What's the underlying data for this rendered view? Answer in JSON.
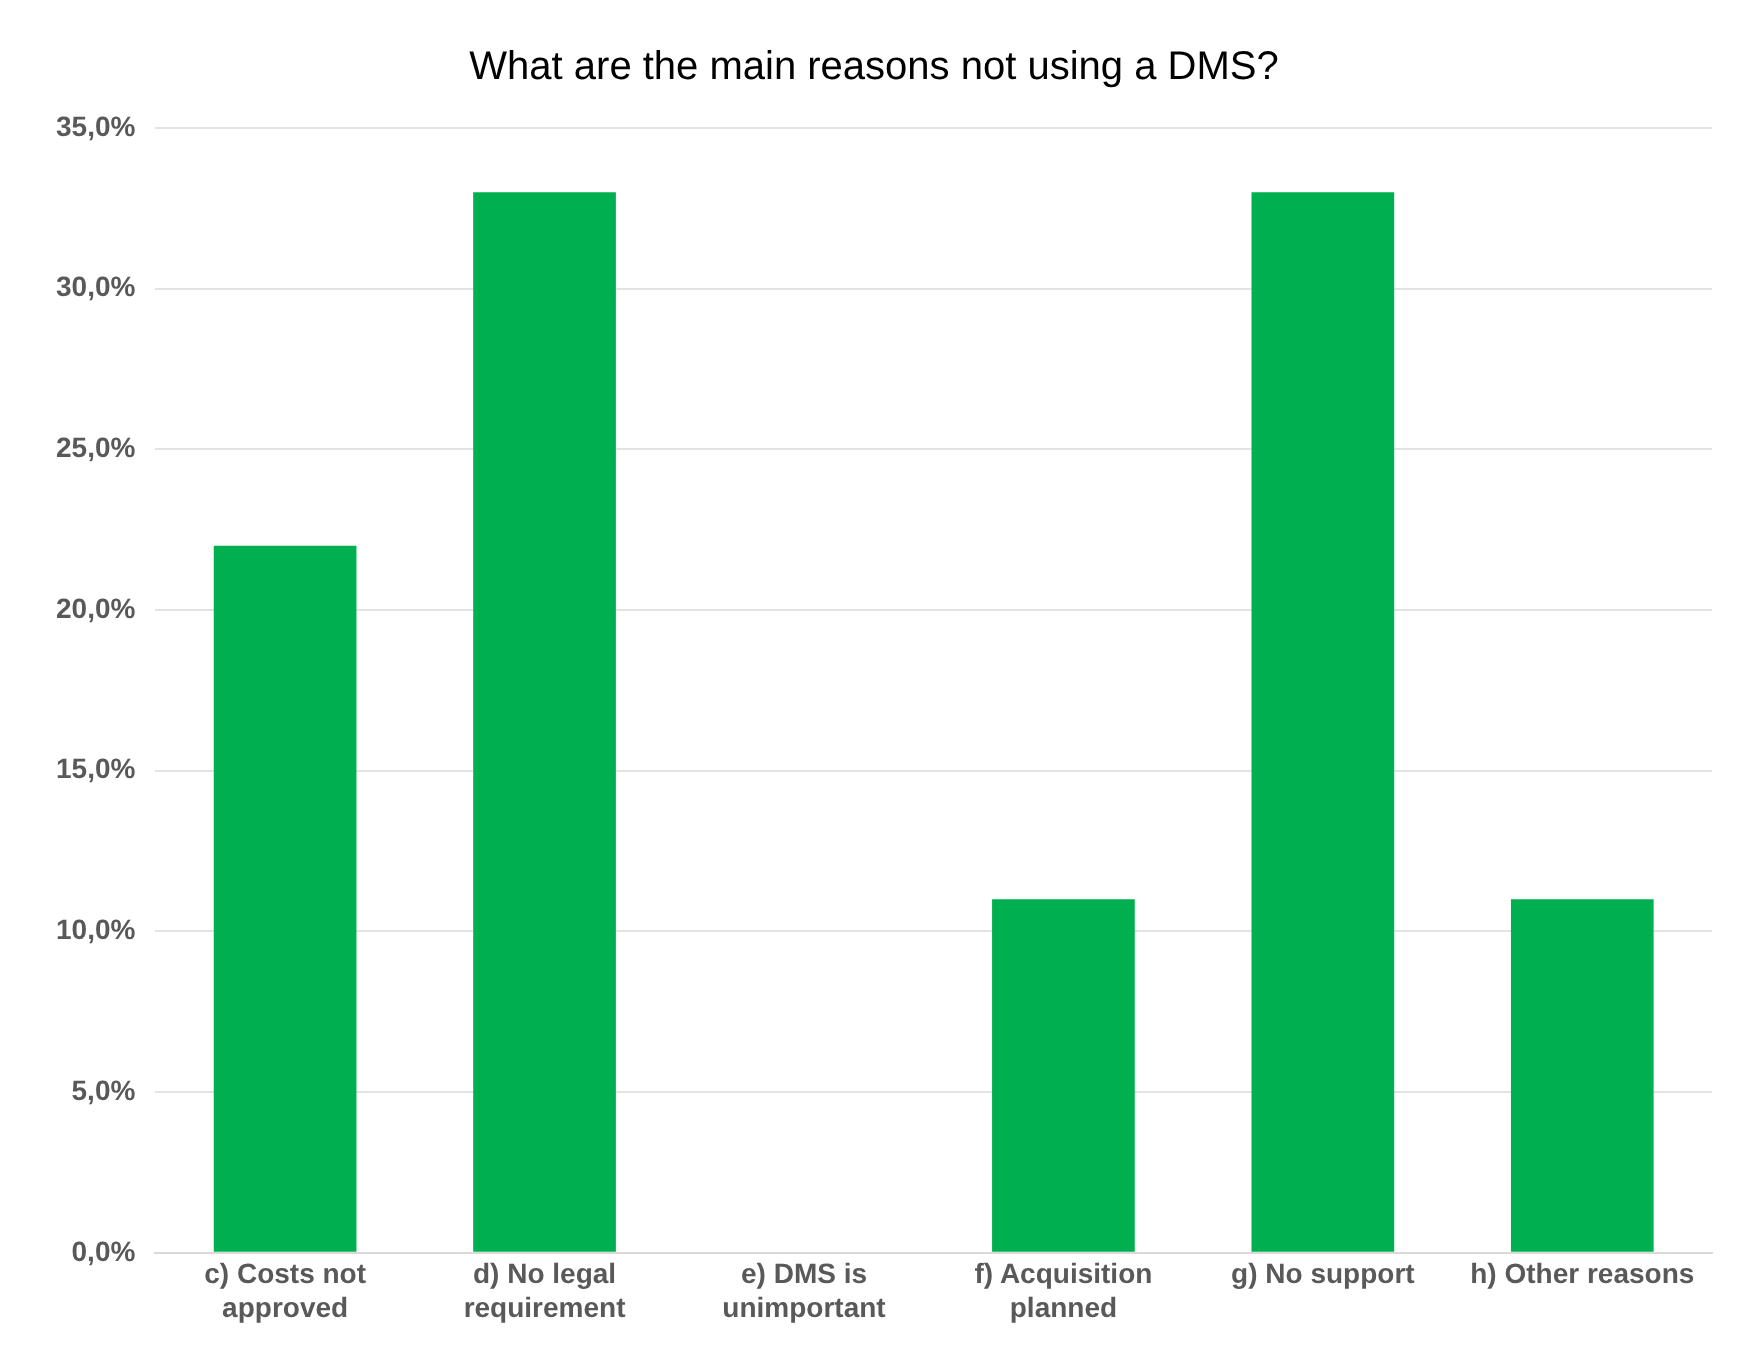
{
  "chart_data": {
    "type": "bar",
    "title": "What are the main reasons not using a DMS?",
    "categories": [
      "c) Costs not approved",
      "d) No legal requirement",
      "e) DMS is unimportant",
      "f) Acquisition planned",
      "g) No support",
      "h) Other reasons"
    ],
    "values": [
      22.0,
      33.0,
      0,
      11.0,
      33.0,
      11.0
    ],
    "color": "#00b050",
    "ylim": [
      0,
      35
    ],
    "yticks": [
      {
        "value": 0,
        "label": "0,0%"
      },
      {
        "value": 5,
        "label": "5,0%"
      },
      {
        "value": 10,
        "label": "10,0%"
      },
      {
        "value": 15,
        "label": "15,0%"
      },
      {
        "value": 20,
        "label": "20,0%"
      },
      {
        "value": 25,
        "label": "25,0%"
      },
      {
        "value": 30,
        "label": "30,0%"
      },
      {
        "value": 35,
        "label": "35,0%"
      }
    ],
    "grid": "y"
  }
}
